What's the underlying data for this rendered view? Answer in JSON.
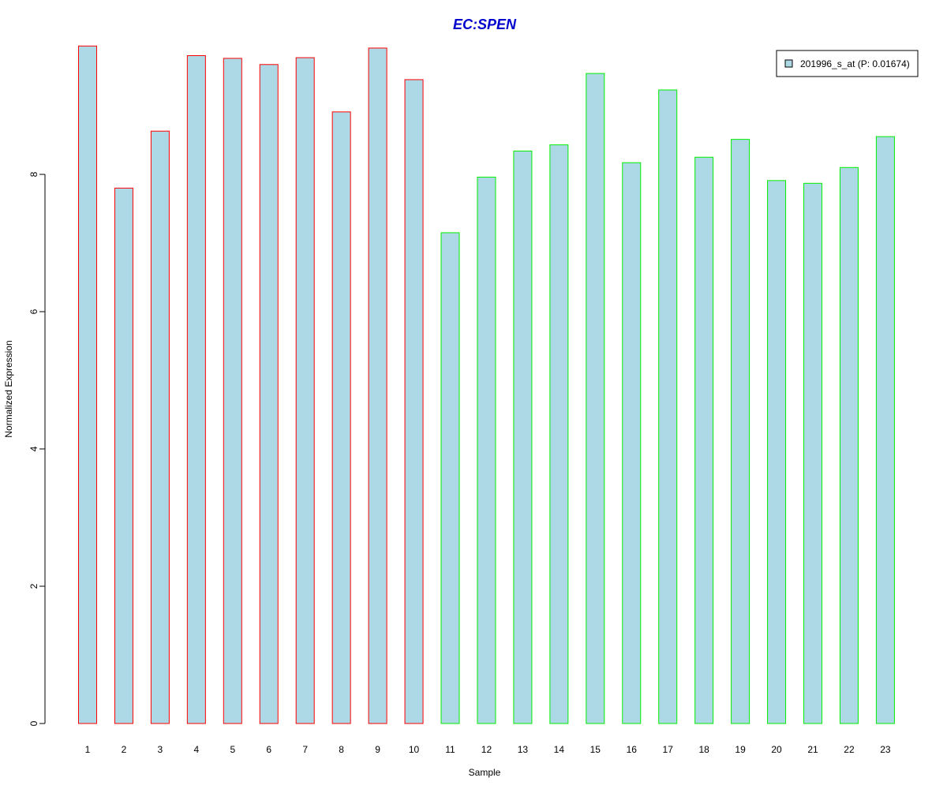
{
  "chart_data": {
    "type": "bar",
    "title": "EC:SPEN",
    "xlabel": "Sample",
    "ylabel": "Normalized Expression",
    "ylim": [
      0,
      10
    ],
    "yticks": [
      0,
      2,
      4,
      6,
      8
    ],
    "categories": [
      "1",
      "2",
      "3",
      "4",
      "5",
      "6",
      "7",
      "8",
      "9",
      "10",
      "11",
      "12",
      "13",
      "14",
      "15",
      "16",
      "17",
      "18",
      "19",
      "20",
      "21",
      "22",
      "23"
    ],
    "series": [
      {
        "name": "201996_s_at (P: 0.01674)",
        "values": [
          9.87,
          7.8,
          8.63,
          9.73,
          9.69,
          9.6,
          9.7,
          8.91,
          9.84,
          9.38,
          7.15,
          7.96,
          8.34,
          8.43,
          9.47,
          8.17,
          9.23,
          8.25,
          8.51,
          7.91,
          7.87,
          8.1,
          8.55
        ]
      }
    ],
    "groups": [
      {
        "from": 0,
        "to": 9,
        "border_color": "#ff0000"
      },
      {
        "from": 10,
        "to": 22,
        "border_color": "#00ee00"
      }
    ],
    "bar_fill": "#add8e6",
    "title_color": "#0000cd",
    "legend": {
      "label": "201996_s_at (P: 0.01674)",
      "placement": "top-right"
    },
    "grid": false
  }
}
